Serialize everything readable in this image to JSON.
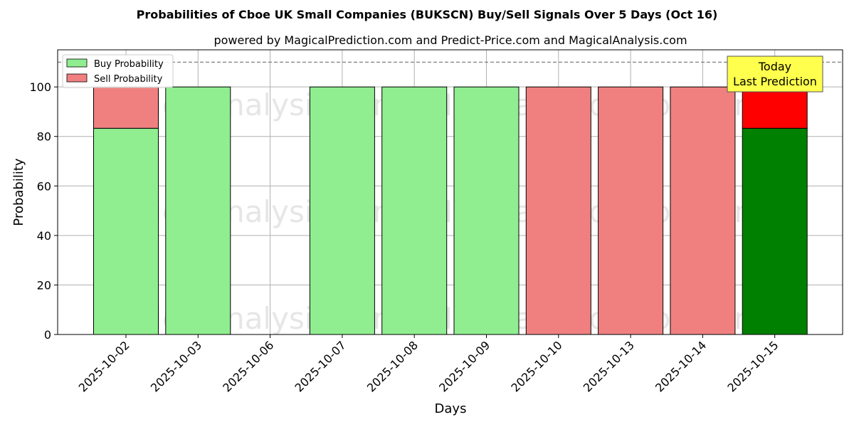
{
  "chart_data": {
    "type": "bar",
    "stacked": true,
    "title": "Probabilities of Cboe UK Small Companies (BUKSCN) Buy/Sell Signals Over 5 Days (Oct 16)",
    "subtitle": "powered by MagicalPrediction.com and Predict-Price.com and MagicalAnalysis.com",
    "xlabel": "Days",
    "ylabel": "Probability",
    "ylim": [
      0,
      115
    ],
    "yticks": [
      0,
      20,
      40,
      60,
      80,
      100
    ],
    "grid": true,
    "legend_placement": "top-left",
    "categories": [
      "2025-10-02",
      "2025-10-03",
      "2025-10-06",
      "2025-10-07",
      "2025-10-08",
      "2025-10-09",
      "2025-10-10",
      "2025-10-13",
      "2025-10-14",
      "2025-10-15"
    ],
    "series": [
      {
        "name": "Buy Probability",
        "color": "#90ee90",
        "highlight_color": "#008000",
        "values": [
          83.3,
          100,
          0,
          100,
          100,
          100,
          0,
          0,
          0,
          83.3
        ]
      },
      {
        "name": "Sell Probability",
        "color": "#f08080",
        "highlight_color": "#ff0000",
        "values": [
          16.7,
          0,
          0,
          0,
          0,
          0,
          100,
          100,
          100,
          16.7
        ]
      }
    ],
    "highlight_category": "2025-10-15",
    "reference_line": {
      "y": 110,
      "style": "dashed",
      "color": "#808080"
    },
    "annotation": {
      "lines": [
        "Today",
        "Last Prediction"
      ],
      "background": "#ffff4d"
    },
    "watermarks": [
      "MagicalAnalysis.com",
      "MagicalPrediction.com"
    ]
  }
}
